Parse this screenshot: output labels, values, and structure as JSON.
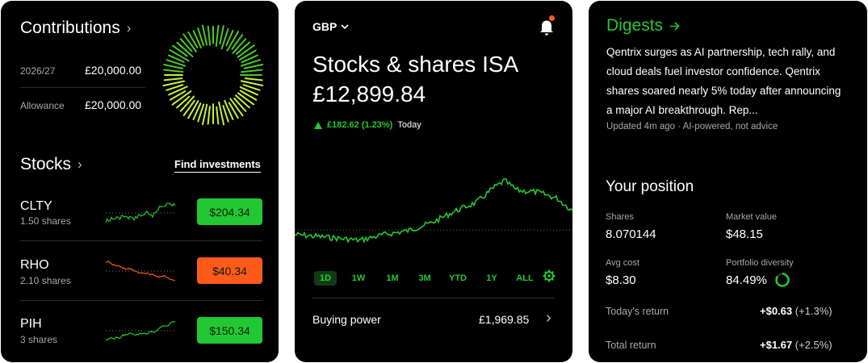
{
  "contributions": {
    "title": "Contributions",
    "rows": [
      {
        "label": "2026/27",
        "value": "£20,000.00"
      },
      {
        "label": "Allowance",
        "value": "£20,000.00"
      }
    ]
  },
  "stocks": {
    "title": "Stocks",
    "find_label": "Find investments",
    "items": [
      {
        "ticker": "CLTY",
        "shares": "1.50 shares",
        "price": "$204.34",
        "trend": "up",
        "color": "#22c832"
      },
      {
        "ticker": "RHO",
        "shares": "2.10 shares",
        "price": "$40.34",
        "trend": "down",
        "color": "#ff5a1a"
      },
      {
        "ticker": "PIH",
        "shares": "3 shares",
        "price": "$150.34",
        "trend": "up",
        "color": "#22c832"
      }
    ]
  },
  "account": {
    "currency": "GBP",
    "title": "Stocks & shares ISA",
    "value": "£12,899.84",
    "change": "£182.62 (1.23%)",
    "change_period": "Today",
    "ranges": [
      "1D",
      "1W",
      "1M",
      "3M",
      "YTD",
      "1Y",
      "ALL"
    ],
    "active_range": "1D",
    "buying_power_label": "Buying power",
    "buying_power_value": "£1,969.85"
  },
  "digests": {
    "title": "Digests",
    "body": "Qentrix surges as AI partnership, tech rally, and cloud deals fuel investor confidence. Qentrix shares soared nearly 5% today after announcing a major AI breakthrough. Rep...",
    "meta": "Updated 4m ago · AI-powered, not advice"
  },
  "position": {
    "title": "Your position",
    "shares_label": "Shares",
    "shares_value": "8.070144",
    "market_label": "Market value",
    "market_value": "$48.15",
    "avg_label": "Avg cost",
    "avg_value": "$8.30",
    "diversity_label": "Portfolio diversity",
    "diversity_value": "84.49%",
    "diversity_fraction": 0.8449,
    "today_label": "Today's return",
    "today_value": "+$0.63",
    "today_pct": "(+1.3%)",
    "total_label": "Total return",
    "total_value": "+$1.67",
    "total_pct": "(+2.5%)"
  },
  "colors": {
    "accent_green": "#22c832",
    "loss_orange": "#ff5a1a",
    "notification_dot": "#ff5a1a"
  },
  "icons": [
    "chevron-right-icon",
    "chevron-down-icon",
    "bell-icon",
    "arrow-right-icon",
    "triangle-up-icon",
    "gear-icon"
  ]
}
